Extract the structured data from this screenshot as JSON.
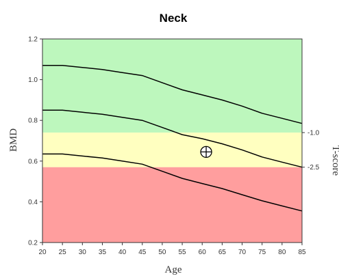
{
  "chart_data": {
    "type": "line",
    "title": "Neck",
    "xlabel": "Age",
    "ylabel": "BMD",
    "y2label": "T-score",
    "xlim": [
      20,
      85
    ],
    "ylim": [
      0.2,
      1.2
    ],
    "x_ticks": [
      20,
      25,
      30,
      35,
      40,
      45,
      50,
      55,
      60,
      65,
      70,
      75,
      80,
      85
    ],
    "y_ticks": [
      "0.2",
      "0.4",
      "0.6",
      "0.8",
      "1.0",
      "1.2"
    ],
    "y2_ticks": [
      {
        "label": "-1.0",
        "bmd": 0.74
      },
      {
        "label": "-2.5",
        "bmd": 0.57
      }
    ],
    "bands": [
      {
        "ymin": 0.74,
        "ymax": 1.2,
        "color": "#bdf7bd"
      },
      {
        "ymin": 0.57,
        "ymax": 0.74,
        "color": "#ffffc0"
      },
      {
        "ymin": 0.2,
        "ymax": 0.57,
        "color": "#ff9e9e"
      }
    ],
    "x": [
      20,
      25,
      30,
      35,
      40,
      45,
      50,
      55,
      60,
      65,
      70,
      75,
      80,
      85
    ],
    "series": [
      {
        "values": [
          1.07,
          1.07,
          1.06,
          1.05,
          1.035,
          1.02,
          0.985,
          0.95,
          0.925,
          0.9,
          0.87,
          0.835,
          0.81,
          0.785
        ]
      },
      {
        "values": [
          0.85,
          0.85,
          0.84,
          0.83,
          0.815,
          0.8,
          0.765,
          0.73,
          0.71,
          0.685,
          0.655,
          0.62,
          0.595,
          0.57
        ]
      },
      {
        "values": [
          0.635,
          0.635,
          0.625,
          0.615,
          0.6,
          0.585,
          0.55,
          0.515,
          0.49,
          0.465,
          0.435,
          0.405,
          0.38,
          0.355
        ]
      }
    ],
    "marker": {
      "x": 61,
      "y": 0.645,
      "symbol": "circle-plus"
    },
    "grid": false,
    "colors": {
      "line": "#000000",
      "axis": "#333333"
    }
  }
}
